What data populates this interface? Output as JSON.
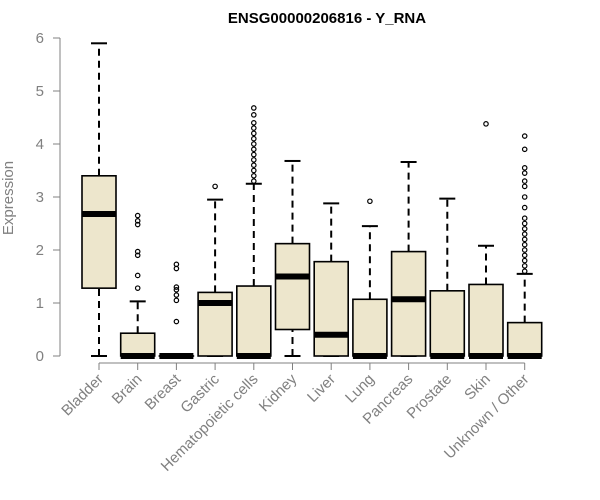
{
  "chart_data": {
    "type": "boxplot",
    "title": "ENSG00000206816 - Y_RNA",
    "xlabel": "",
    "ylabel": "Expression",
    "ylim": [
      0,
      6
    ],
    "yticks": [
      "0",
      "1",
      "2",
      "3",
      "4",
      "5",
      "6"
    ],
    "grid": false,
    "colors": {
      "box_fill": "#ede6cc",
      "stroke": "#000000",
      "axis": "#808080"
    },
    "categories": [
      "Bladder",
      "Brain",
      "Breast",
      "Gastric",
      "Hematopoietic cells",
      "Kidney",
      "Liver",
      "Lung",
      "Pancreas",
      "Prostate",
      "Skin",
      "Unknown / Other"
    ],
    "boxes": [
      {
        "min": 0,
        "q1": 1.28,
        "median": 2.68,
        "q3": 3.4,
        "max": 5.9,
        "outliers": []
      },
      {
        "min": 0,
        "q1": 0,
        "median": 0,
        "q3": 0.43,
        "max": 1.03,
        "outliers": [
          1.28,
          1.52,
          1.9,
          1.97,
          2.48,
          2.55,
          2.65
        ]
      },
      {
        "min": 0,
        "q1": 0,
        "median": 0,
        "q3": 0,
        "max": 0,
        "outliers": [
          0.65,
          1.05,
          1.15,
          1.25,
          1.3,
          1.65,
          1.73
        ]
      },
      {
        "min": 0,
        "q1": 0,
        "median": 1.0,
        "q3": 1.2,
        "max": 2.95,
        "outliers": [
          3.2
        ]
      },
      {
        "min": 0,
        "q1": 0,
        "median": 0,
        "q3": 1.32,
        "max": 3.25,
        "outliers": [
          3.3,
          3.4,
          3.5,
          3.6,
          3.7,
          3.8,
          3.9,
          4.0,
          4.1,
          4.2,
          4.3,
          4.4,
          4.55,
          4.68
        ]
      },
      {
        "min": 0,
        "q1": 0.5,
        "median": 1.5,
        "q3": 2.12,
        "max": 3.68,
        "outliers": []
      },
      {
        "min": 0,
        "q1": 0,
        "median": 0.4,
        "q3": 1.78,
        "max": 2.88,
        "outliers": []
      },
      {
        "min": 0,
        "q1": 0,
        "median": 0,
        "q3": 1.07,
        "max": 2.45,
        "outliers": [
          2.92
        ]
      },
      {
        "min": 0,
        "q1": 0,
        "median": 1.07,
        "q3": 1.97,
        "max": 3.66,
        "outliers": []
      },
      {
        "min": 0,
        "q1": 0,
        "median": 0,
        "q3": 1.23,
        "max": 2.97,
        "outliers": []
      },
      {
        "min": 0,
        "q1": 0,
        "median": 0,
        "q3": 1.35,
        "max": 2.08,
        "outliers": [
          4.38
        ]
      },
      {
        "min": 0,
        "q1": 0,
        "median": 0,
        "q3": 0.63,
        "max": 1.55,
        "outliers": [
          1.6,
          1.7,
          1.8,
          1.9,
          2.0,
          2.1,
          2.2,
          2.3,
          2.4,
          2.5,
          2.6,
          2.8,
          3.0,
          3.2,
          3.3,
          3.45,
          3.55,
          3.9,
          4.15
        ]
      }
    ]
  }
}
